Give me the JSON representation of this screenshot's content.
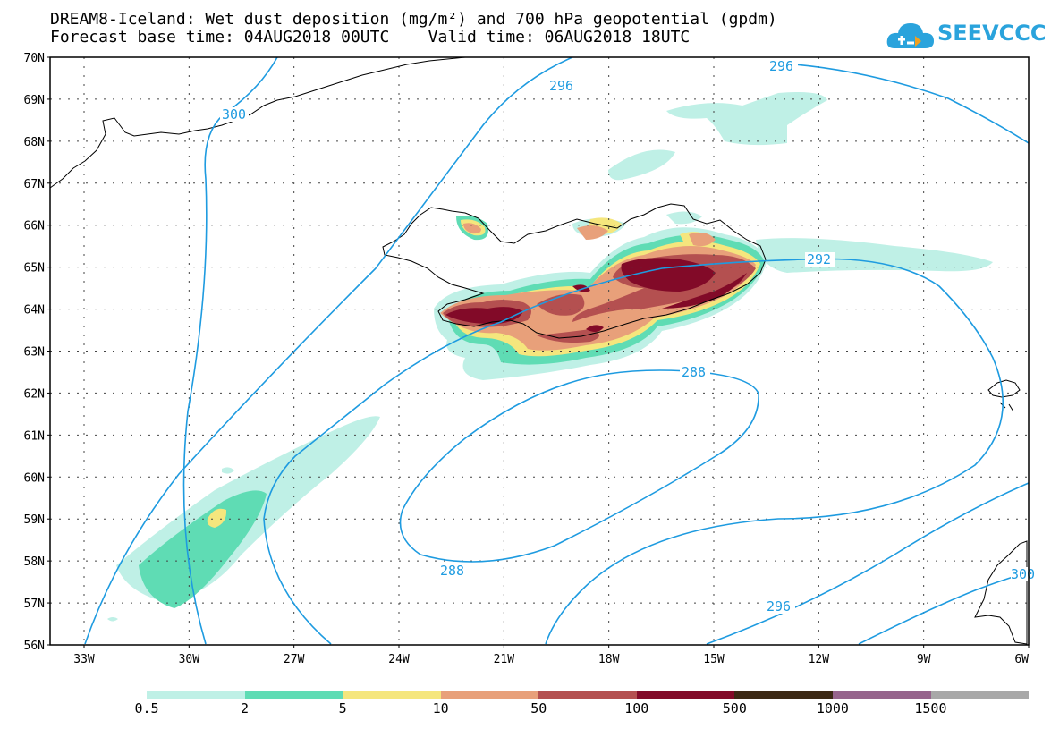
{
  "title_line1": "DREAM8-Iceland: Wet dust deposition (mg/m²) and 700 hPa geopotential (gpdm)",
  "title_line2": "Forecast base time: 04AUG2018 00UTC    Valid time: 06AUG2018 18UTC",
  "logo_text": "SEEVCCC",
  "map": {
    "lat_labels": [
      "70N",
      "69N",
      "68N",
      "67N",
      "66N",
      "65N",
      "64N",
      "63N",
      "62N",
      "61N",
      "60N",
      "59N",
      "58N",
      "57N",
      "56N"
    ],
    "lon_labels": [
      "33W",
      "30W",
      "27W",
      "24W",
      "21W",
      "18W",
      "15W",
      "12W",
      "9W",
      "6W"
    ],
    "contour_labels": [
      "300",
      "296",
      "296",
      "292",
      "288",
      "288",
      "296",
      "300"
    ]
  },
  "legend": {
    "colors": [
      "#bff0e6",
      "#5fdcb4",
      "#f5e67d",
      "#e8a07a",
      "#b45050",
      "#820a28",
      "#3c2814",
      "#96648c",
      "#a8a8a8"
    ],
    "labels": [
      "0.5",
      "2",
      "5",
      "10",
      "50",
      "100",
      "500",
      "1000",
      "1500"
    ]
  },
  "colors": {
    "contour": "#1e9be0",
    "coast": "#000000"
  }
}
